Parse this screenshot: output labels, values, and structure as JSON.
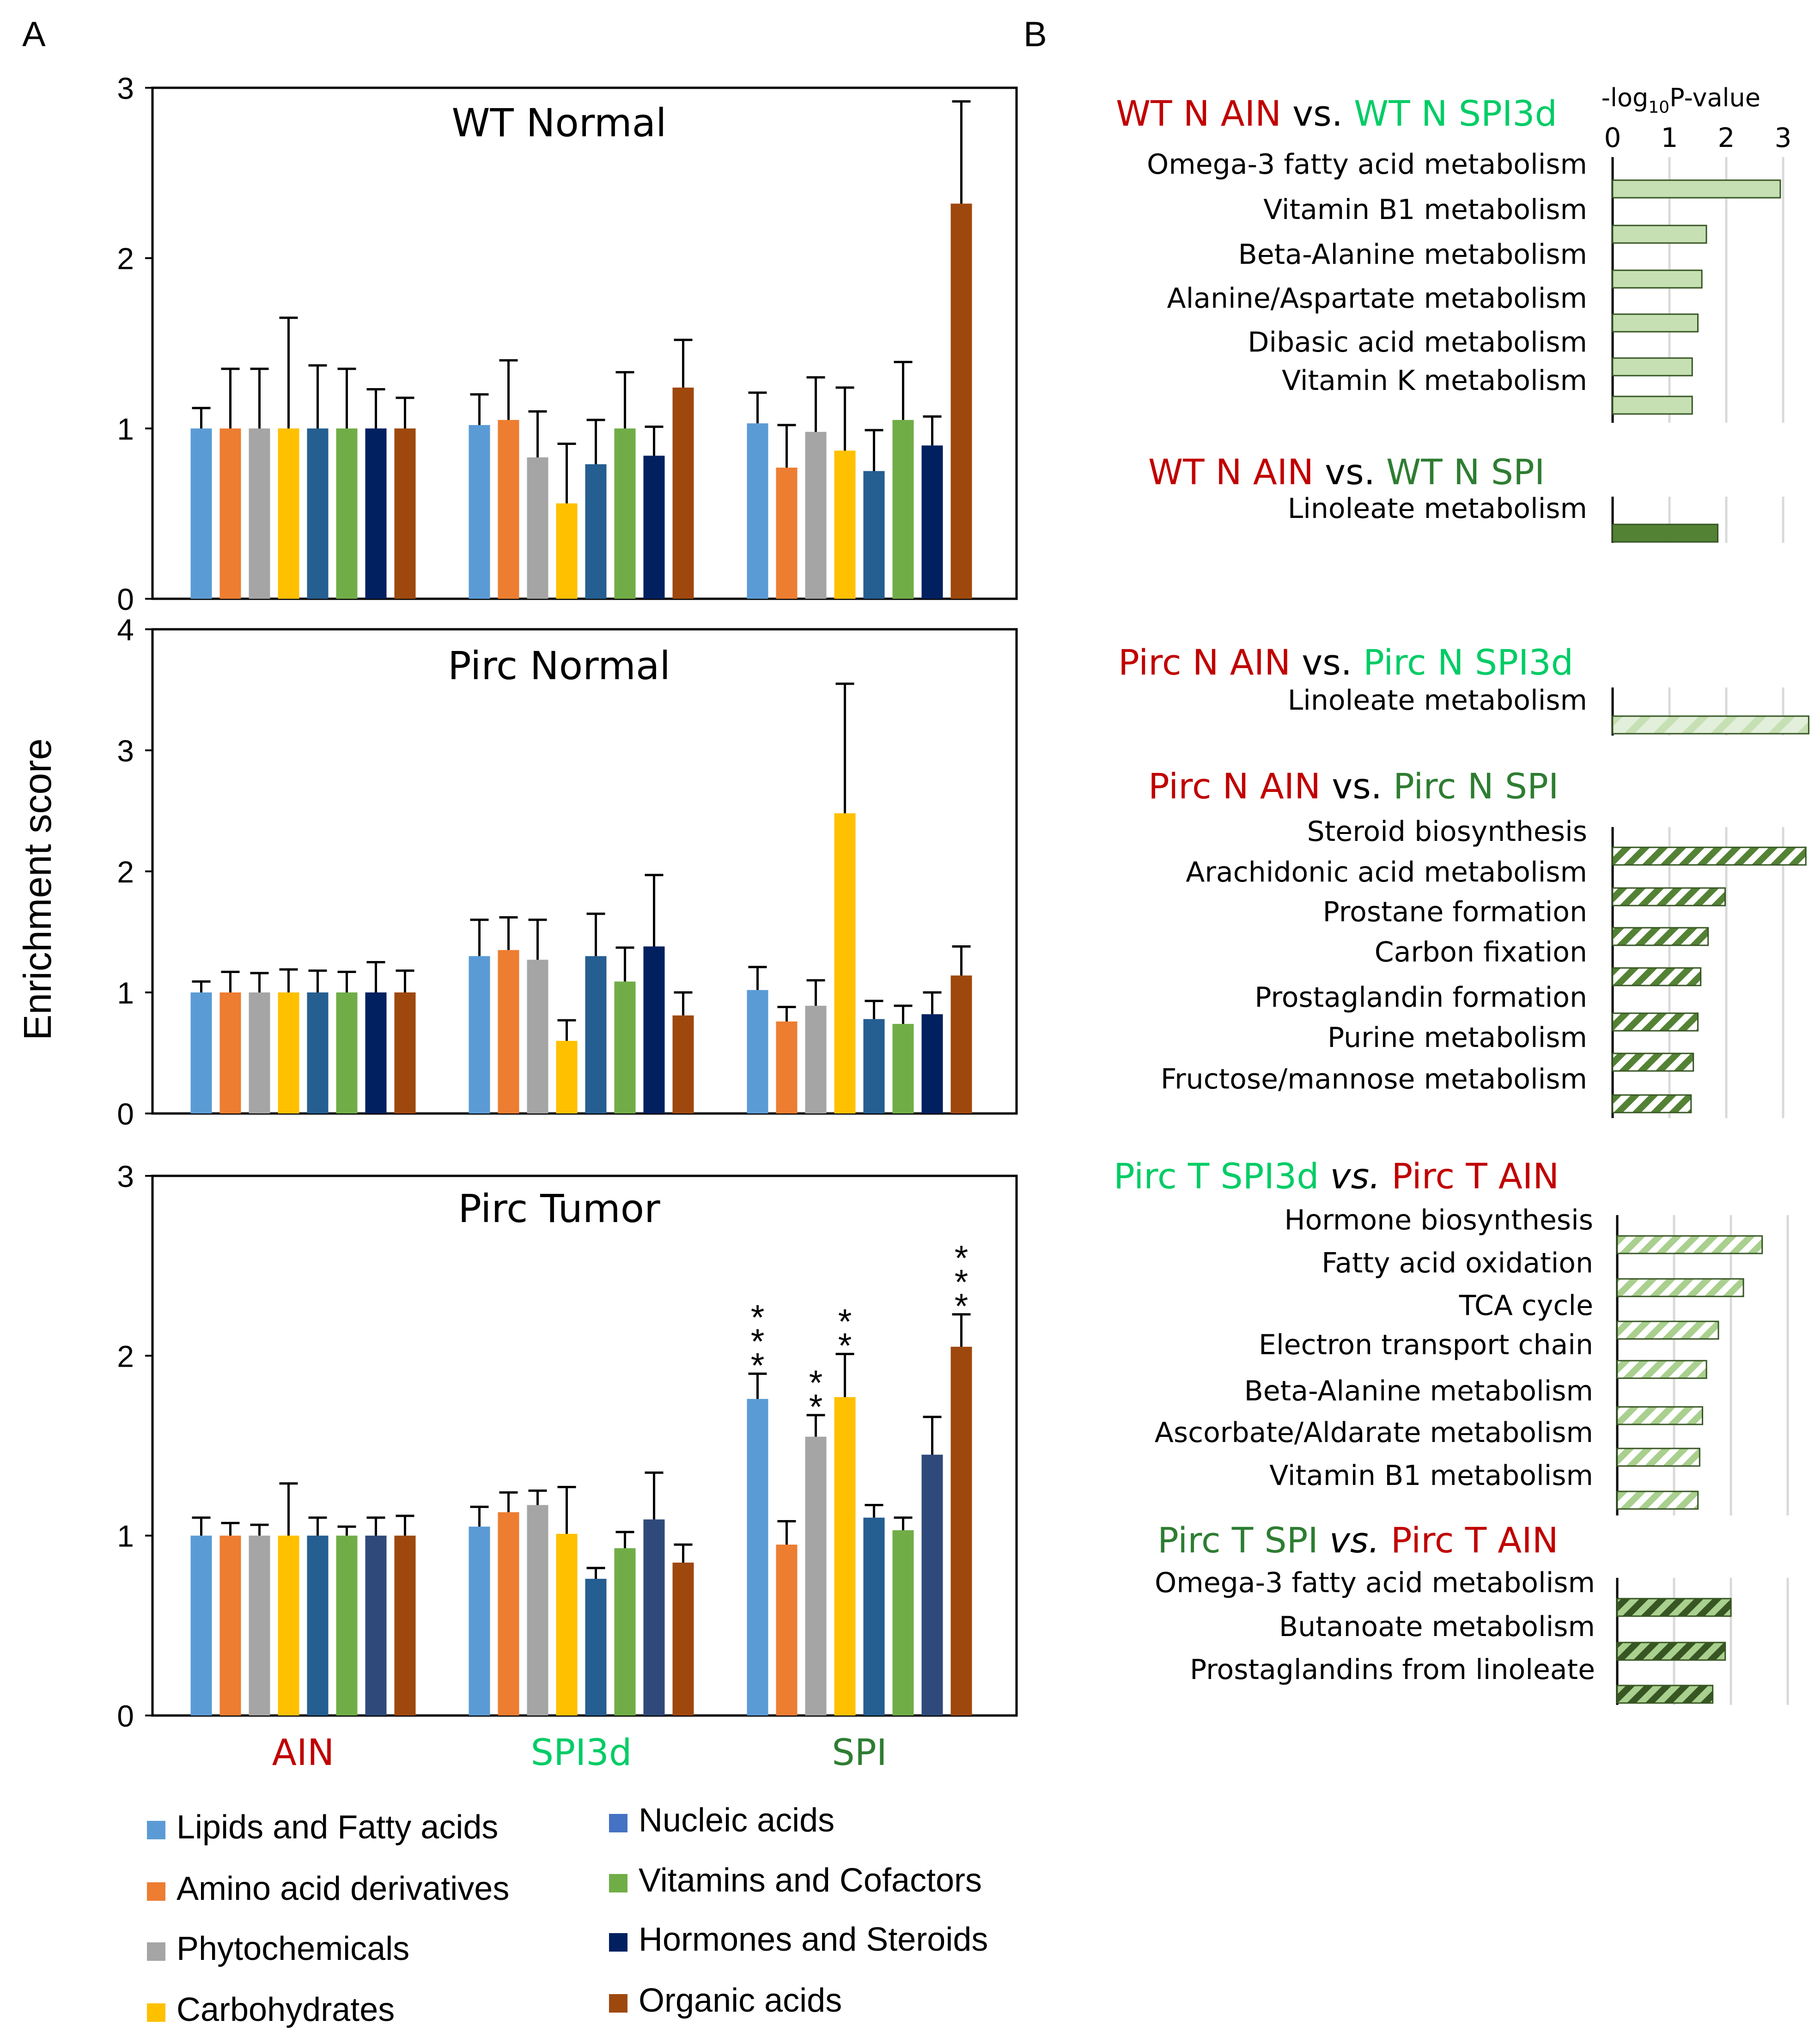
{
  "panel_labels": {
    "a": "A",
    "b": "B"
  },
  "panel_a": {
    "ylabel": "Enrichment score",
    "groups": [
      {
        "name": "AIN",
        "color": "#c00000"
      },
      {
        "name": "SPI3d",
        "color": "#00cc66"
      },
      {
        "name": "SPI",
        "color": "#2e7d32"
      }
    ],
    "legend": [
      {
        "name": "Lipids and Fatty acids",
        "color": "#5b9bd5"
      },
      {
        "name": "Amino acid derivatives",
        "color": "#ed7d31"
      },
      {
        "name": "Phytochemicals",
        "color": "#a5a5a5"
      },
      {
        "name": "Carbohydrates",
        "color": "#ffc000"
      },
      {
        "name": "Nucleic acids",
        "color": "#4472c4"
      },
      {
        "name": "Vitamins and Cofactors",
        "color": "#70ad47"
      },
      {
        "name": "Hormones and Steroids",
        "color": "#002060"
      },
      {
        "name": "Organic acids",
        "color": "#9e480e"
      }
    ]
  },
  "chart_data": [
    {
      "type": "bar",
      "title": "WT Normal",
      "ylabel": "Enrichment score",
      "ylim": [
        0,
        3
      ],
      "yticks": [
        0,
        1,
        2,
        3
      ],
      "categories": [
        "AIN",
        "SPI3d",
        "SPI"
      ],
      "bar_colors": [
        "#5b9bd5",
        "#ed7d31",
        "#a5a5a5",
        "#ffc000",
        "#255e91",
        "#70ad47",
        "#002060",
        "#9e480e"
      ],
      "series": [
        {
          "name": "Lipids and Fatty acids",
          "values": [
            1.0,
            1.02,
            1.03
          ],
          "errors": [
            0.12,
            0.18,
            0.18
          ]
        },
        {
          "name": "Amino acid derivatives",
          "values": [
            1.0,
            1.05,
            0.77
          ],
          "errors": [
            0.35,
            0.35,
            0.25
          ]
        },
        {
          "name": "Phytochemicals",
          "values": [
            1.0,
            0.83,
            0.98
          ],
          "errors": [
            0.35,
            0.27,
            0.32
          ]
        },
        {
          "name": "Carbohydrates",
          "values": [
            1.0,
            0.56,
            0.87
          ],
          "errors": [
            0.65,
            0.35,
            0.37
          ]
        },
        {
          "name": "Nucleic acids",
          "values": [
            1.0,
            0.79,
            0.75
          ],
          "errors": [
            0.37,
            0.26,
            0.24
          ]
        },
        {
          "name": "Vitamins and Cofactors",
          "values": [
            1.0,
            1.0,
            1.05
          ],
          "errors": [
            0.35,
            0.33,
            0.34
          ]
        },
        {
          "name": "Hormones and Steroids",
          "values": [
            1.0,
            0.84,
            0.9
          ],
          "errors": [
            0.23,
            0.17,
            0.17
          ]
        },
        {
          "name": "Organic acids",
          "values": [
            1.0,
            1.24,
            2.32
          ],
          "errors": [
            0.18,
            0.28,
            0.6
          ]
        }
      ],
      "annotations": []
    },
    {
      "type": "bar",
      "title": "Pirc Normal",
      "ylabel": "Enrichment score",
      "ylim": [
        0,
        4
      ],
      "yticks": [
        0,
        1,
        2,
        3,
        4
      ],
      "categories": [
        "AIN",
        "SPI3d",
        "SPI"
      ],
      "bar_colors": [
        "#5b9bd5",
        "#ed7d31",
        "#a5a5a5",
        "#ffc000",
        "#255e91",
        "#70ad47",
        "#002060",
        "#9e480e"
      ],
      "series": [
        {
          "name": "Lipids and Fatty acids",
          "values": [
            1.0,
            1.3,
            1.02
          ],
          "errors": [
            0.09,
            0.3,
            0.19
          ]
        },
        {
          "name": "Amino acid derivatives",
          "values": [
            1.0,
            1.35,
            0.76
          ],
          "errors": [
            0.17,
            0.27,
            0.12
          ]
        },
        {
          "name": "Phytochemicals",
          "values": [
            1.0,
            1.27,
            0.89
          ],
          "errors": [
            0.16,
            0.33,
            0.21
          ]
        },
        {
          "name": "Carbohydrates",
          "values": [
            1.0,
            0.6,
            2.48
          ],
          "errors": [
            0.19,
            0.17,
            1.07
          ]
        },
        {
          "name": "Nucleic acids",
          "values": [
            1.0,
            1.3,
            0.78
          ],
          "errors": [
            0.18,
            0.35,
            0.15
          ]
        },
        {
          "name": "Vitamins and Cofactors",
          "values": [
            1.0,
            1.09,
            0.74
          ],
          "errors": [
            0.17,
            0.28,
            0.15
          ]
        },
        {
          "name": "Hormones and Steroids",
          "values": [
            1.0,
            1.38,
            0.82
          ],
          "errors": [
            0.25,
            0.59,
            0.18
          ]
        },
        {
          "name": "Organic acids",
          "values": [
            1.0,
            0.81,
            1.14
          ],
          "errors": [
            0.18,
            0.19,
            0.24
          ]
        }
      ],
      "annotations": []
    },
    {
      "type": "bar",
      "title": "Pirc Tumor",
      "ylabel": "Enrichment score",
      "ylim": [
        0,
        3
      ],
      "yticks": [
        0,
        1,
        2,
        3
      ],
      "categories": [
        "AIN",
        "SPI3d",
        "SPI"
      ],
      "bar_colors": [
        "#5b9bd5",
        "#ed7d31",
        "#a5a5a5",
        "#ffc000",
        "#255e91",
        "#70ad47",
        "#2f4a7a",
        "#9e480e"
      ],
      "series": [
        {
          "name": "Lipids and Fatty acids",
          "values": [
            1.0,
            1.05,
            1.76
          ],
          "errors": [
            0.1,
            0.11,
            0.14
          ]
        },
        {
          "name": "Amino acid derivatives",
          "values": [
            1.0,
            1.13,
            0.95
          ],
          "errors": [
            0.07,
            0.11,
            0.13
          ]
        },
        {
          "name": "Phytochemicals",
          "values": [
            1.0,
            1.17,
            1.55
          ],
          "errors": [
            0.06,
            0.08,
            0.12
          ]
        },
        {
          "name": "Carbohydrates",
          "values": [
            1.0,
            1.01,
            1.77
          ],
          "errors": [
            0.29,
            0.26,
            0.24
          ]
        },
        {
          "name": "Nucleic acids",
          "values": [
            1.0,
            0.76,
            1.1
          ],
          "errors": [
            0.1,
            0.06,
            0.07
          ]
        },
        {
          "name": "Vitamins and Cofactors",
          "values": [
            1.0,
            0.93,
            1.03
          ],
          "errors": [
            0.05,
            0.09,
            0.07
          ]
        },
        {
          "name": "Hormones and Steroids",
          "values": [
            1.0,
            1.09,
            1.45
          ],
          "errors": [
            0.1,
            0.26,
            0.21
          ]
        },
        {
          "name": "Organic acids",
          "values": [
            1.0,
            0.85,
            2.05
          ],
          "errors": [
            0.11,
            0.1,
            0.18
          ]
        }
      ],
      "annotations": [
        {
          "series": "Lipids and Fatty acids",
          "category": "SPI",
          "label": "***"
        },
        {
          "series": "Phytochemicals",
          "category": "SPI",
          "label": "**"
        },
        {
          "series": "Carbohydrates",
          "category": "SPI",
          "label": "**"
        },
        {
          "series": "Organic acids",
          "category": "SPI",
          "label": "***"
        }
      ]
    },
    {
      "type": "bar",
      "orientation": "horizontal",
      "axis_title": "-log10P-value",
      "axis_title_parts": {
        "pre": "-log",
        "sub": "10",
        "post": "P-value"
      },
      "xlim": [
        0,
        3.5
      ],
      "xticks": [
        0,
        1,
        2,
        3
      ],
      "groups": [
        {
          "header": [
            {
              "text": "WT N AIN",
              "color": "#c00000"
            },
            {
              "text": " vs. ",
              "color": "#000000"
            },
            {
              "text": "WT N SPI3d",
              "color": "#00cc66"
            }
          ],
          "fill": "#c6e0b4",
          "hatch": false,
          "items": [
            {
              "label": "Omega-3 fatty acid metabolism",
              "value": 2.95
            },
            {
              "label": "Vitamin B1 metabolism",
              "value": 1.65
            },
            {
              "label": "Beta-Alanine metabolism",
              "value": 1.57
            },
            {
              "label": "Alanine/Aspartate metabolism",
              "value": 1.5
            },
            {
              "label": "Dibasic acid metabolism",
              "value": 1.4
            },
            {
              "label": "Vitamin K metabolism",
              "value": 1.4
            }
          ]
        },
        {
          "header": [
            {
              "text": "WT N AIN",
              "color": "#c00000"
            },
            {
              "text": " vs. ",
              "color": "#000000"
            },
            {
              "text": "WT N SPI",
              "color": "#2e7d32"
            }
          ],
          "fill": "#548235",
          "hatch": false,
          "items": [
            {
              "label": "Linoleate metabolism",
              "value": 1.85
            }
          ]
        },
        {
          "header": [
            {
              "text": "Pirc N AIN",
              "color": "#c00000"
            },
            {
              "text": " vs. ",
              "color": "#000000"
            },
            {
              "text": "Pirc N SPI3d",
              "color": "#00cc66"
            }
          ],
          "fill": "#c6e0b4",
          "hatch": "light",
          "items": [
            {
              "label": "Linoleate metabolism",
              "value": 3.45
            }
          ]
        },
        {
          "header": [
            {
              "text": "Pirc N AIN",
              "color": "#c00000"
            },
            {
              "text": " vs. ",
              "color": "#000000"
            },
            {
              "text": "Pirc N SPI",
              "color": "#2e7d32"
            }
          ],
          "fill": "#548235",
          "hatch": "strong",
          "items": [
            {
              "label": "Steroid biosynthesis",
              "value": 3.4
            },
            {
              "label": "Arachidonic acid metabolism",
              "value": 1.98
            },
            {
              "label": "Prostane formation",
              "value": 1.68
            },
            {
              "label": "Carbon fixation",
              "value": 1.55
            },
            {
              "label": "Prostaglandin formation",
              "value": 1.5
            },
            {
              "label": "Purine metabolism",
              "value": 1.42
            },
            {
              "label": "Fructose/mannose metabolism",
              "value": 1.38
            }
          ]
        },
        {
          "header": [
            {
              "text": "Pirc T SPI3d ",
              "color": "#00cc66"
            },
            {
              "text": "vs.",
              "color": "#000000",
              "italic": true
            },
            {
              "text": " Pirc T AIN",
              "color": "#c00000"
            }
          ],
          "fill": "#a9d08e",
          "hatch": "strong",
          "items": [
            {
              "label": "Hormone biosynthesis",
              "value": 2.55
            },
            {
              "label": "Fatty acid oxidation",
              "value": 2.22
            },
            {
              "label": "TCA cycle",
              "value": 1.78
            },
            {
              "label": "Electron transport chain",
              "value": 1.57
            },
            {
              "label": "Beta-Alanine metabolism",
              "value": 1.5
            },
            {
              "label": "Ascorbate/Aldarate metabolism",
              "value": 1.45
            },
            {
              "label": "Vitamin B1 metabolism",
              "value": 1.42
            }
          ]
        },
        {
          "header": [
            {
              "text": "Pirc T SPI ",
              "color": "#2e7d32"
            },
            {
              "text": "vs.",
              "color": "#000000",
              "italic": true
            },
            {
              "text": " Pirc T AIN",
              "color": "#c00000"
            }
          ],
          "fill": "#375623",
          "hatch": "strong",
          "items": [
            {
              "label": "Omega-3 fatty acid metabolism",
              "value": 2.0
            },
            {
              "label": "Butanoate metabolism",
              "value": 1.9
            },
            {
              "label": "Prostaglandins from linoleate",
              "value": 1.68
            }
          ]
        }
      ]
    }
  ]
}
